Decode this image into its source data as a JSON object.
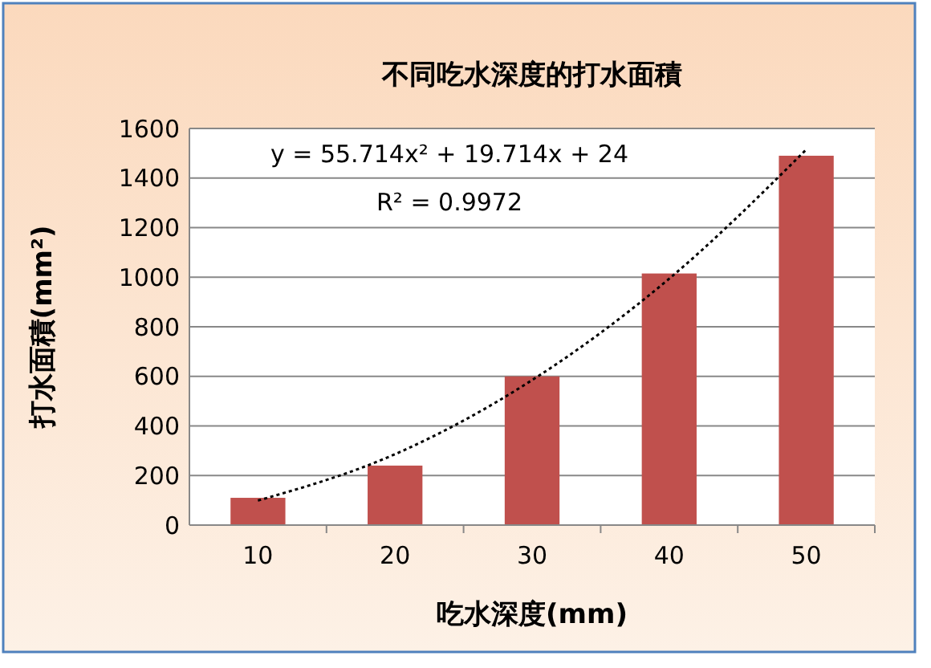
{
  "chart_data": {
    "type": "bar",
    "title": "不同吃水深度的打水面積",
    "xlabel": "吃水深度(mm)",
    "ylabel": "打水面積(mm²)",
    "categories": [
      "10",
      "20",
      "30",
      "40",
      "50"
    ],
    "series": [
      {
        "color": "#c0504d",
        "values": [
          110,
          240,
          600,
          1015,
          1490
        ]
      },
      {
        "type": "line",
        "color": "#000000",
        "x": [
          "10",
          "20",
          "30",
          "40",
          "50"
        ],
        "values": [
          99,
          286,
          585,
          994,
          1515
        ],
        "line_style": "dotted"
      }
    ],
    "annotations": [
      "y = 55.714x² + 19.714x + 24",
      "R² = 0.9972"
    ],
    "ylim": [
      0,
      1600
    ],
    "yticks": [
      0,
      200,
      400,
      600,
      800,
      1000,
      1200,
      1400,
      1600
    ],
    "grid": "y"
  }
}
